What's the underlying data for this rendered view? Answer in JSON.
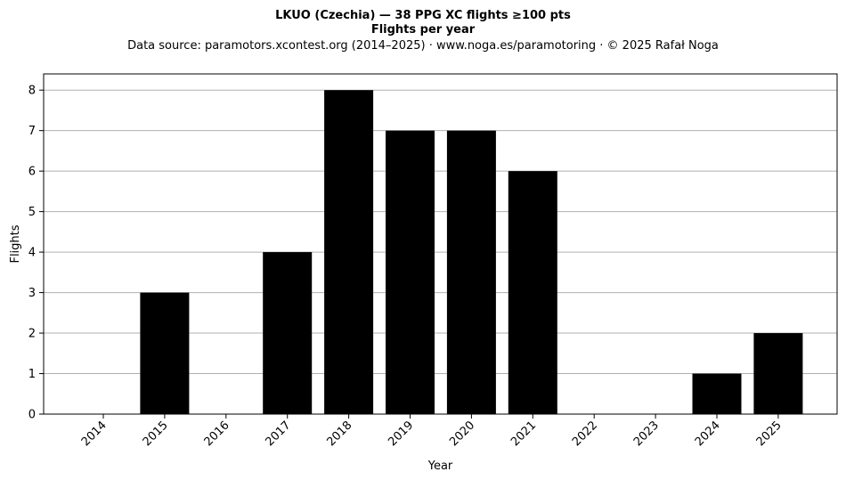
{
  "chart_data": {
    "type": "bar",
    "title": "LKUO (Czechia)  —  38 PPG XC flights ≥100 pts",
    "subtitle": "Flights per year",
    "source_note": "Data source: paramotors.xcontest.org (2014–2025)  ·  www.noga.es/paramotoring  ·  © 2025 Rafał Noga",
    "xlabel": "Year",
    "ylabel": "Flights",
    "categories": [
      "2014",
      "2015",
      "2016",
      "2017",
      "2018",
      "2019",
      "2020",
      "2021",
      "2022",
      "2023",
      "2024",
      "2025"
    ],
    "values": [
      0,
      3,
      0,
      4,
      8,
      7,
      7,
      6,
      0,
      0,
      1,
      2
    ],
    "ylim": [
      0,
      8.4
    ],
    "yticks": [
      0,
      1,
      2,
      3,
      4,
      5,
      6,
      7,
      8
    ],
    "grid": "horizontal",
    "bar_color": "#000000",
    "grid_color": "#b0b0b0"
  }
}
